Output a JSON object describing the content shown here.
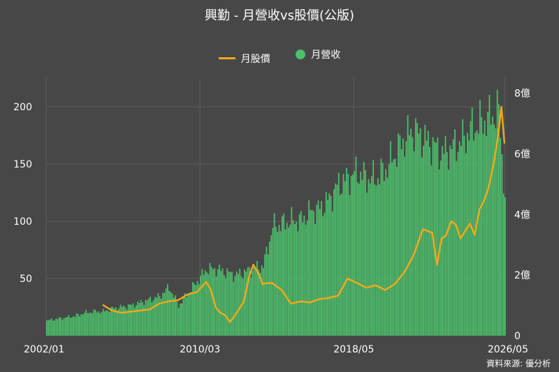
{
  "title": "興勤 - 月營收vs股價(公版)",
  "source": "資料來源: 優分析",
  "colors": {
    "background": "#474747",
    "grid": "#5e5e5e",
    "bar": "#4cc06b",
    "line": "#f2a81c",
    "text": "#ffffff"
  },
  "legend": [
    {
      "label": "月股價",
      "shape": "line",
      "color": "#f2a81c"
    },
    {
      "label": "月營收",
      "shape": "dot",
      "color": "#4cc06b"
    }
  ],
  "chart_data": {
    "type": "bar+line",
    "title": "興勤 - 月營收vs股價(公版)",
    "x_ticks": [
      "2002/01",
      "2010/03",
      "2018/05",
      "2026/05"
    ],
    "x_range": [
      "2002/01",
      "2026/05"
    ],
    "y_left": {
      "label": "",
      "ticks": [
        "50",
        "100",
        "150",
        "200"
      ],
      "range": [
        0,
        225
      ]
    },
    "y_right": {
      "label": "",
      "ticks": [
        "0",
        "2億",
        "4億",
        "6億",
        "8億"
      ],
      "range": [
        0,
        8.5
      ]
    },
    "grid": true,
    "legend_position": "top-center",
    "series": [
      {
        "name": "月營收",
        "kind": "bar",
        "axis": "right",
        "unit": "億",
        "points": [
          [
            "2002/01",
            0.5
          ],
          [
            "2002/07",
            0.55
          ],
          [
            "2003/01",
            0.6
          ],
          [
            "2003/07",
            0.65
          ],
          [
            "2004/01",
            0.75
          ],
          [
            "2004/07",
            0.8
          ],
          [
            "2005/01",
            0.8
          ],
          [
            "2005/07",
            0.9
          ],
          [
            "2006/01",
            0.95
          ],
          [
            "2006/07",
            1.0
          ],
          [
            "2007/01",
            1.1
          ],
          [
            "2007/07",
            1.2
          ],
          [
            "2008/01",
            1.3
          ],
          [
            "2008/07",
            1.6
          ],
          [
            "2009/01",
            1.0
          ],
          [
            "2009/07",
            1.4
          ],
          [
            "2010/01",
            1.8
          ],
          [
            "2010/07",
            2.2
          ],
          [
            "2011/01",
            2.2
          ],
          [
            "2011/07",
            2.1
          ],
          [
            "2012/01",
            2.0
          ],
          [
            "2012/07",
            2.1
          ],
          [
            "2013/01",
            2.2
          ],
          [
            "2013/07",
            2.3
          ],
          [
            "2014/01",
            3.6
          ],
          [
            "2014/07",
            3.7
          ],
          [
            "2015/01",
            3.8
          ],
          [
            "2015/07",
            3.8
          ],
          [
            "2016/01",
            4.1
          ],
          [
            "2016/07",
            4.2
          ],
          [
            "2017/01",
            4.5
          ],
          [
            "2017/07",
            5.0
          ],
          [
            "2018/01",
            5.2
          ],
          [
            "2018/07",
            5.4
          ],
          [
            "2019/01",
            5.2
          ],
          [
            "2019/07",
            5.2
          ],
          [
            "2020/01",
            5.5
          ],
          [
            "2020/07",
            6.0
          ],
          [
            "2021/01",
            6.5
          ],
          [
            "2021/07",
            6.8
          ],
          [
            "2022/01",
            6.5
          ],
          [
            "2022/07",
            6.3
          ],
          [
            "2023/01",
            6.0
          ],
          [
            "2023/07",
            6.2
          ],
          [
            "2024/01",
            6.4
          ],
          [
            "2024/07",
            6.8
          ],
          [
            "2025/01",
            7.0
          ],
          [
            "2025/07",
            7.2
          ],
          [
            "2026/01",
            7.4
          ],
          [
            "2026/05",
            4.5
          ]
        ]
      },
      {
        "name": "月股價",
        "kind": "line",
        "axis": "left",
        "points": [
          [
            "2005/01",
            27
          ],
          [
            "2005/07",
            22
          ],
          [
            "2006/01",
            20
          ],
          [
            "2006/07",
            21
          ],
          [
            "2007/01",
            22
          ],
          [
            "2007/07",
            23
          ],
          [
            "2008/01",
            28
          ],
          [
            "2008/07",
            30
          ],
          [
            "2009/01",
            31
          ],
          [
            "2009/07",
            36
          ],
          [
            "2010/01",
            38
          ],
          [
            "2010/07",
            47
          ],
          [
            "2010/10",
            40
          ],
          [
            "2011/01",
            25
          ],
          [
            "2011/04",
            20
          ],
          [
            "2011/07",
            18
          ],
          [
            "2011/10",
            12
          ],
          [
            "2012/01",
            17
          ],
          [
            "2012/07",
            30
          ],
          [
            "2012/10",
            50
          ],
          [
            "2013/01",
            62
          ],
          [
            "2013/04",
            55
          ],
          [
            "2013/07",
            45
          ],
          [
            "2013/10",
            46
          ],
          [
            "2014/01",
            46
          ],
          [
            "2014/07",
            40
          ],
          [
            "2015/01",
            28
          ],
          [
            "2015/07",
            30
          ],
          [
            "2016/01",
            29
          ],
          [
            "2016/07",
            32
          ],
          [
            "2017/01",
            33
          ],
          [
            "2017/07",
            35
          ],
          [
            "2018/01",
            50
          ],
          [
            "2018/07",
            46
          ],
          [
            "2019/01",
            42
          ],
          [
            "2019/07",
            44
          ],
          [
            "2020/01",
            40
          ],
          [
            "2020/07",
            45
          ],
          [
            "2021/01",
            55
          ],
          [
            "2021/07",
            70
          ],
          [
            "2022/01",
            93
          ],
          [
            "2022/07",
            90
          ],
          [
            "2022/10",
            62
          ],
          [
            "2023/01",
            85
          ],
          [
            "2023/04",
            88
          ],
          [
            "2023/07",
            100
          ],
          [
            "2023/10",
            97
          ],
          [
            "2024/01",
            85
          ],
          [
            "2024/07",
            98
          ],
          [
            "2024/10",
            88
          ],
          [
            "2025/01",
            110
          ],
          [
            "2025/04",
            118
          ],
          [
            "2025/07",
            130
          ],
          [
            "2025/10",
            150
          ],
          [
            "2026/01",
            175
          ],
          [
            "2026/03",
            200
          ],
          [
            "2026/05",
            168
          ]
        ]
      }
    ]
  }
}
